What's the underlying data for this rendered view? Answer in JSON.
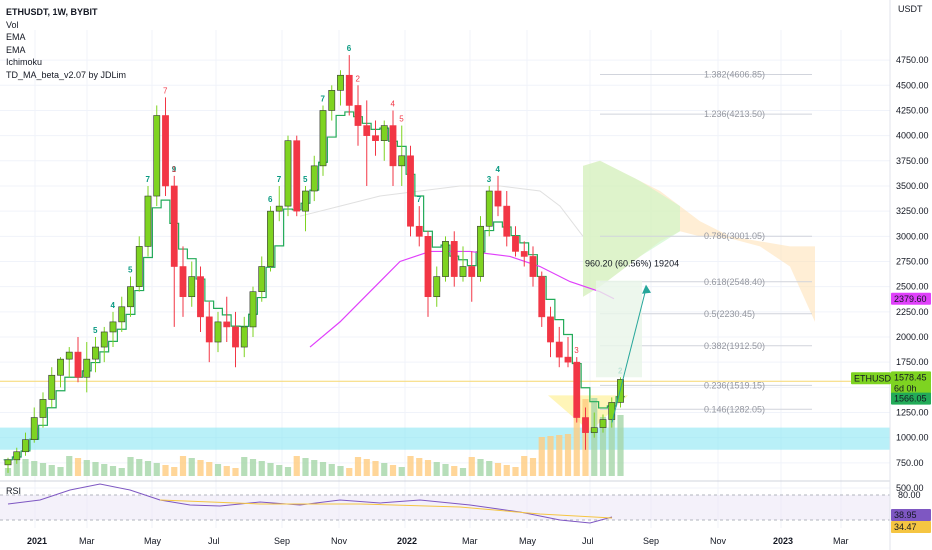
{
  "header": {
    "symbol_line": "ETHUSDT, 1W, BYBIT",
    "indicators": [
      "Vol",
      "EMA",
      "EMA",
      "Ichimoku",
      "TD_MA_beta_v2.07 by JDLim"
    ]
  },
  "price_axis": {
    "unit": "USDT",
    "ticks": [
      "4750.00",
      "4500.00",
      "4250.00",
      "4000.00",
      "3750.00",
      "3500.00",
      "3250.00",
      "3000.00",
      "2750.00",
      "2500.00",
      "2250.00",
      "2000.00",
      "1750.00",
      "1500.00",
      "1250.00",
      "1000.00",
      "750.00",
      "500.00"
    ]
  },
  "time_axis": {
    "labels": [
      "2021",
      "Mar",
      "May",
      "Jul",
      "Sep",
      "Nov",
      "2022",
      "Mar",
      "May",
      "Jul",
      "Sep",
      "Nov",
      "2023",
      "Mar"
    ]
  },
  "badges": {
    "level": "2379.60",
    "ticker": "ETHUSDT",
    "last_price": "1578.45",
    "countdown": "6d 0h",
    "ema_value": "1566.05"
  },
  "fib_levels": [
    {
      "label": "1.382(4606.85)",
      "price": 4606.85
    },
    {
      "label": "1.236(4213.50)",
      "price": 4213.5
    },
    {
      "label": "0.786(3001.05)",
      "price": 3001.05
    },
    {
      "label": "0.618(2548.40)",
      "price": 2548.4
    },
    {
      "label": "0.5(2230.45)",
      "price": 2230.45
    },
    {
      "label": "0.382(1912.50)",
      "price": 1912.5
    },
    {
      "label": "0.236(1519.15)",
      "price": 1519.15
    },
    {
      "label": "0.146(1282.05)",
      "price": 1282.05
    }
  ],
  "projection": {
    "label": "960.20 (60.56%) 19204"
  },
  "rsi": {
    "label": "RSI",
    "ticks": [
      "80.00",
      "20.00"
    ],
    "value": "38.95",
    "ma_value": "34.47"
  },
  "colors": {
    "up": "#7ed321",
    "down": "#f23645",
    "ema_fast": "#22ab58",
    "ema_slow": "#e040fb",
    "support_zone": "#7fe3f2",
    "rsi_line": "#7e57c2",
    "rsi_ma": "#f5c542"
  },
  "chart_data": {
    "type": "candlestick",
    "title": "ETHUSDT, 1W, BYBIT",
    "ylim": [
      450,
      4950
    ],
    "y_unit": "USDT",
    "candles": [
      [
        730,
        800,
        650,
        780
      ],
      [
        780,
        900,
        740,
        860
      ],
      [
        860,
        1050,
        820,
        980
      ],
      [
        980,
        1300,
        950,
        1200
      ],
      [
        1200,
        1450,
        1100,
        1380
      ],
      [
        1380,
        1700,
        1300,
        1620
      ],
      [
        1620,
        1800,
        1500,
        1780
      ],
      [
        1780,
        1900,
        1600,
        1850
      ],
      [
        1850,
        2000,
        1550,
        1600
      ],
      [
        1600,
        1950,
        1450,
        1780
      ],
      [
        1780,
        2000,
        1650,
        1900
      ],
      [
        1900,
        2100,
        1750,
        2050
      ],
      [
        2050,
        2250,
        1900,
        2150
      ],
      [
        2150,
        2400,
        2050,
        2300
      ],
      [
        2300,
        2600,
        2200,
        2500
      ],
      [
        2500,
        3000,
        2450,
        2900
      ],
      [
        2900,
        3500,
        2800,
        3400
      ],
      [
        3400,
        4300,
        3300,
        4200
      ],
      [
        4200,
        4380,
        3400,
        3500
      ],
      [
        3500,
        3600,
        2100,
        2700
      ],
      [
        2700,
        2900,
        2200,
        2400
      ],
      [
        2400,
        2750,
        2300,
        2600
      ],
      [
        2600,
        2700,
        2050,
        2200
      ],
      [
        2200,
        2350,
        1750,
        1950
      ],
      [
        1950,
        2250,
        1850,
        2150
      ],
      [
        2150,
        2400,
        1950,
        2100
      ],
      [
        2100,
        2250,
        1700,
        1900
      ],
      [
        1900,
        2200,
        1800,
        2100
      ],
      [
        2100,
        2500,
        2000,
        2450
      ],
      [
        2450,
        2800,
        2350,
        2700
      ],
      [
        2700,
        3300,
        2650,
        3250
      ],
      [
        3250,
        3500,
        3150,
        3300
      ],
      [
        3300,
        4000,
        3200,
        3950
      ],
      [
        3950,
        4000,
        3200,
        3250
      ],
      [
        3250,
        3500,
        3050,
        3450
      ],
      [
        3450,
        3800,
        3350,
        3700
      ],
      [
        3700,
        4300,
        3600,
        4250
      ],
      [
        4250,
        4500,
        4150,
        4450
      ],
      [
        4450,
        4650,
        4300,
        4600
      ],
      [
        4600,
        4800,
        4200,
        4300
      ],
      [
        4300,
        4500,
        3900,
        4100
      ],
      [
        4100,
        4350,
        3500,
        4000
      ],
      [
        4000,
        4150,
        3800,
        3950
      ],
      [
        3950,
        4150,
        3750,
        4100
      ],
      [
        4100,
        4250,
        3500,
        3700
      ],
      [
        3700,
        4100,
        3500,
        3800
      ],
      [
        3800,
        3900,
        3000,
        3100
      ],
      [
        3100,
        3300,
        2900,
        3000
      ],
      [
        3000,
        3050,
        2200,
        2400
      ],
      [
        2400,
        2700,
        2300,
        2600
      ],
      [
        2600,
        3000,
        2550,
        2950
      ],
      [
        2950,
        3050,
        2500,
        2600
      ],
      [
        2600,
        2900,
        2550,
        2700
      ],
      [
        2700,
        2850,
        2350,
        2600
      ],
      [
        2600,
        3200,
        2550,
        3100
      ],
      [
        3100,
        3500,
        3000,
        3450
      ],
      [
        3450,
        3600,
        3200,
        3300
      ],
      [
        3300,
        3450,
        2900,
        3000
      ],
      [
        3000,
        3100,
        2800,
        2850
      ],
      [
        2850,
        2950,
        2700,
        2800
      ],
      [
        2800,
        2900,
        2500,
        2600
      ],
      [
        2600,
        2650,
        2100,
        2200
      ],
      [
        2200,
        2300,
        1800,
        1950
      ],
      [
        1950,
        2100,
        1700,
        1800
      ],
      [
        1800,
        2000,
        1700,
        1750
      ],
      [
        1750,
        1800,
        1150,
        1200
      ],
      [
        1200,
        1300,
        880,
        1050
      ],
      [
        1050,
        1250,
        1000,
        1100
      ],
      [
        1100,
        1230,
        1050,
        1180
      ],
      [
        1180,
        1400,
        1100,
        1350
      ],
      [
        1350,
        1600,
        1300,
        1578.45
      ]
    ],
    "rsi_range": [
      0,
      100
    ],
    "rsi_ticks": [
      80,
      20
    ],
    "rsi_last": 38.95,
    "rsi_ma_last": 34.47
  }
}
